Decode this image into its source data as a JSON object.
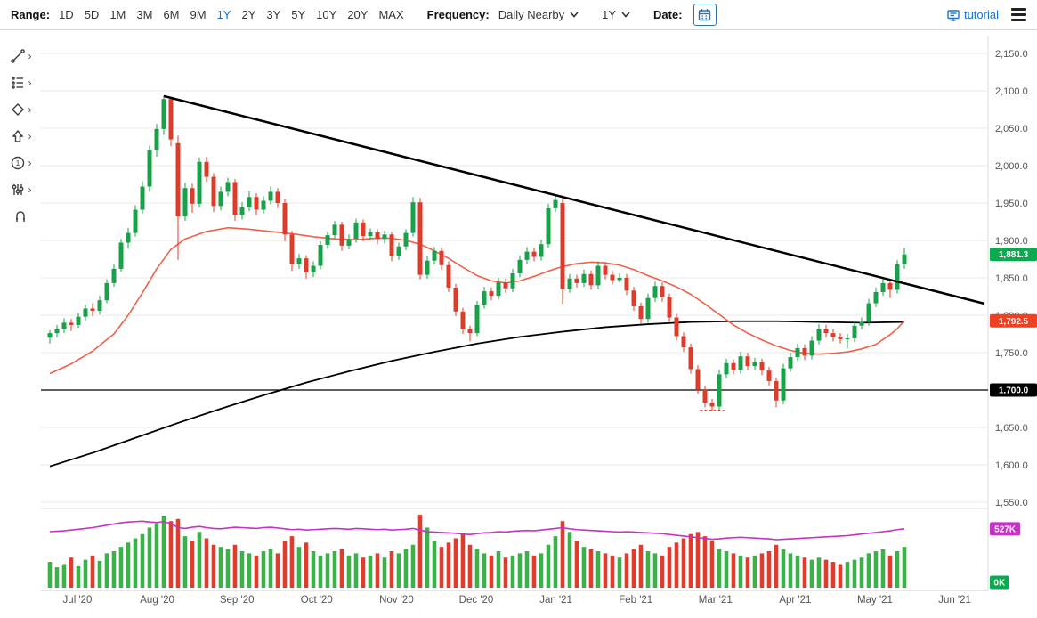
{
  "toolbar": {
    "range_label": "Range:",
    "ranges": [
      "1D",
      "5D",
      "1M",
      "3M",
      "6M",
      "9M",
      "1Y",
      "2Y",
      "3Y",
      "5Y",
      "10Y",
      "20Y",
      "MAX"
    ],
    "active_range": "1Y",
    "frequency_label": "Frequency:",
    "frequency_value": "Daily Nearby",
    "period_value": "1Y",
    "date_label": "Date:",
    "tutorial_label": "tutorial"
  },
  "ui_colors": {
    "accent_blue": "#1673d2",
    "calendar_border": "#2e76ad",
    "text_dark": "#222222"
  },
  "sidebar": {
    "tools": [
      "trendline-tool",
      "indicators-tool",
      "shapes-tool",
      "arrows-tool",
      "numbers-tool",
      "sliders-tool",
      "magnet-tool"
    ]
  },
  "chart_data": {
    "type": "candlestick",
    "frequency": "Daily Nearby",
    "x_labels": [
      "Jul '20",
      "Aug '20",
      "Sep '20",
      "Oct '20",
      "Nov '20",
      "Dec '20",
      "Jan '21",
      "Feb '21",
      "Mar '21",
      "Apr '21",
      "May '21",
      "Jun '21"
    ],
    "y_axis": {
      "min": 1550,
      "max": 2150,
      "step": 50,
      "tick_values": [
        2150,
        2100,
        2050,
        2000,
        1950,
        1900,
        1850,
        1800,
        1750,
        1700,
        1650,
        1600,
        1550
      ],
      "tick_labels": [
        "2,150.0",
        "2,100.0",
        "2,050.0",
        "2,000.0",
        "1,950.0",
        "1,900.0",
        "1,850.0",
        "1,800.0",
        "1,750.0",
        "1,700.0",
        "1,650.0",
        "1,600.0",
        "1,550.0"
      ]
    },
    "colors": {
      "up": "#18a04a",
      "down": "#dc3c2a",
      "volume_up": "#3cb049",
      "volume_down": "#e03c2e",
      "ma_short": "#f0604a",
      "ma_long": "#000000",
      "open_interest": "#c434c4",
      "grid": "#e8e8e8",
      "axis_text": "#555555"
    },
    "candles": [
      [
        1770,
        1780,
        1762,
        1776
      ],
      [
        1776,
        1787,
        1770,
        1781
      ],
      [
        1781,
        1796,
        1776,
        1790
      ],
      [
        1790,
        1795,
        1779,
        1787
      ],
      [
        1787,
        1803,
        1783,
        1798
      ],
      [
        1798,
        1814,
        1793,
        1809
      ],
      [
        1809,
        1816,
        1799,
        1806
      ],
      [
        1806,
        1826,
        1801,
        1820
      ],
      [
        1820,
        1848,
        1816,
        1843
      ],
      [
        1843,
        1868,
        1838,
        1862
      ],
      [
        1862,
        1902,
        1858,
        1897
      ],
      [
        1897,
        1917,
        1889,
        1910
      ],
      [
        1910,
        1947,
        1905,
        1941
      ],
      [
        1941,
        1979,
        1936,
        1972
      ],
      [
        1972,
        2027,
        1965,
        2021
      ],
      [
        2021,
        2056,
        2012,
        2049
      ],
      [
        2049,
        2093,
        2041,
        2089
      ],
      [
        2089,
        2091,
        2026,
        2035
      ],
      [
        2030,
        2040,
        1874,
        1932
      ],
      [
        1932,
        1977,
        1926,
        1970
      ],
      [
        1970,
        1976,
        1937,
        1949
      ],
      [
        1949,
        2011,
        1944,
        2005
      ],
      [
        2005,
        2012,
        1978,
        1985
      ],
      [
        1985,
        1990,
        1938,
        1946
      ],
      [
        1946,
        1972,
        1940,
        1965
      ],
      [
        1965,
        1984,
        1959,
        1978
      ],
      [
        1978,
        1982,
        1926,
        1934
      ],
      [
        1934,
        1951,
        1928,
        1944
      ],
      [
        1944,
        1966,
        1939,
        1958
      ],
      [
        1958,
        1963,
        1934,
        1941
      ],
      [
        1941,
        1959,
        1936,
        1953
      ],
      [
        1953,
        1972,
        1948,
        1965
      ],
      [
        1965,
        1970,
        1943,
        1950
      ],
      [
        1950,
        1955,
        1899,
        1908
      ],
      [
        1908,
        1913,
        1859,
        1868
      ],
      [
        1868,
        1882,
        1862,
        1876
      ],
      [
        1876,
        1880,
        1849,
        1857
      ],
      [
        1857,
        1872,
        1851,
        1866
      ],
      [
        1866,
        1899,
        1861,
        1894
      ],
      [
        1894,
        1912,
        1889,
        1907
      ],
      [
        1907,
        1926,
        1902,
        1921
      ],
      [
        1921,
        1925,
        1886,
        1893
      ],
      [
        1893,
        1908,
        1888,
        1902
      ],
      [
        1902,
        1929,
        1897,
        1924
      ],
      [
        1924,
        1928,
        1899,
        1906
      ],
      [
        1906,
        1916,
        1900,
        1911
      ],
      [
        1911,
        1915,
        1895,
        1902
      ],
      [
        1902,
        1913,
        1896,
        1908
      ],
      [
        1908,
        1912,
        1872,
        1879
      ],
      [
        1879,
        1897,
        1874,
        1892
      ],
      [
        1892,
        1915,
        1887,
        1910
      ],
      [
        1910,
        1958,
        1905,
        1951
      ],
      [
        1951,
        1957,
        1848,
        1854
      ],
      [
        1854,
        1879,
        1849,
        1873
      ],
      [
        1873,
        1891,
        1868,
        1886
      ],
      [
        1886,
        1890,
        1861,
        1867
      ],
      [
        1867,
        1872,
        1831,
        1837
      ],
      [
        1837,
        1842,
        1799,
        1805
      ],
      [
        1805,
        1810,
        1775,
        1781
      ],
      [
        1781,
        1786,
        1765,
        1776
      ],
      [
        1776,
        1819,
        1772,
        1814
      ],
      [
        1814,
        1838,
        1809,
        1832
      ],
      [
        1832,
        1837,
        1820,
        1826
      ],
      [
        1826,
        1850,
        1821,
        1844
      ],
      [
        1844,
        1849,
        1830,
        1836
      ],
      [
        1836,
        1862,
        1831,
        1856
      ],
      [
        1856,
        1880,
        1851,
        1874
      ],
      [
        1874,
        1891,
        1869,
        1885
      ],
      [
        1885,
        1890,
        1872,
        1878
      ],
      [
        1878,
        1901,
        1873,
        1895
      ],
      [
        1895,
        1949,
        1890,
        1943
      ],
      [
        1943,
        1960,
        1938,
        1954
      ],
      [
        1950,
        1958,
        1815,
        1835
      ],
      [
        1835,
        1855,
        1830,
        1849
      ],
      [
        1849,
        1854,
        1837,
        1843
      ],
      [
        1843,
        1861,
        1838,
        1855
      ],
      [
        1855,
        1860,
        1834,
        1840
      ],
      [
        1840,
        1872,
        1835,
        1866
      ],
      [
        1866,
        1871,
        1848,
        1854
      ],
      [
        1854,
        1859,
        1841,
        1847
      ],
      [
        1847,
        1856,
        1844,
        1850
      ],
      [
        1850,
        1855,
        1827,
        1833
      ],
      [
        1833,
        1838,
        1806,
        1812
      ],
      [
        1812,
        1817,
        1789,
        1795
      ],
      [
        1795,
        1829,
        1790,
        1823
      ],
      [
        1823,
        1845,
        1818,
        1839
      ],
      [
        1839,
        1844,
        1818,
        1824
      ],
      [
        1824,
        1829,
        1791,
        1797
      ],
      [
        1797,
        1802,
        1766,
        1772
      ],
      [
        1772,
        1777,
        1751,
        1757
      ],
      [
        1757,
        1762,
        1722,
        1728
      ],
      [
        1728,
        1733,
        1695,
        1701
      ],
      [
        1701,
        1706,
        1677,
        1683
      ],
      [
        1683,
        1688,
        1672,
        1678
      ],
      [
        1678,
        1727,
        1673,
        1721
      ],
      [
        1721,
        1742,
        1716,
        1736
      ],
      [
        1736,
        1741,
        1721,
        1727
      ],
      [
        1727,
        1751,
        1722,
        1745
      ],
      [
        1745,
        1750,
        1726,
        1732
      ],
      [
        1732,
        1743,
        1727,
        1737
      ],
      [
        1737,
        1742,
        1720,
        1726
      ],
      [
        1726,
        1731,
        1706,
        1712
      ],
      [
        1712,
        1717,
        1677,
        1686
      ],
      [
        1686,
        1735,
        1681,
        1729
      ],
      [
        1729,
        1750,
        1724,
        1744
      ],
      [
        1744,
        1762,
        1739,
        1756
      ],
      [
        1756,
        1761,
        1740,
        1746
      ],
      [
        1746,
        1772,
        1741,
        1766
      ],
      [
        1766,
        1788,
        1761,
        1782
      ],
      [
        1782,
        1787,
        1770,
        1776
      ],
      [
        1776,
        1781,
        1765,
        1771
      ],
      [
        1771,
        1776,
        1762,
        1768
      ],
      [
        1768,
        1775,
        1756,
        1769
      ],
      [
        1769,
        1792,
        1764,
        1786
      ],
      [
        1786,
        1797,
        1781,
        1791
      ],
      [
        1791,
        1822,
        1786,
        1816
      ],
      [
        1816,
        1837,
        1811,
        1831
      ],
      [
        1831,
        1849,
        1826,
        1843
      ],
      [
        1843,
        1848,
        1823,
        1834
      ],
      [
        1834,
        1874,
        1829,
        1868
      ],
      [
        1868,
        1890,
        1862,
        1881.3
      ]
    ],
    "overlays": {
      "trendline": {
        "i1": 16,
        "p1": 2093,
        "i2": 131.25,
        "p2": 1815.5,
        "color": "#000000"
      },
      "horizontal_line": {
        "price": 1700,
        "color": "#000000"
      },
      "low_marker": {
        "price": 1673,
        "i1": 91.3,
        "i2": 94.7
      },
      "ma_short": {
        "color": "#f0604a",
        "points": [
          [
            0,
            1722
          ],
          [
            3,
            1735
          ],
          [
            6,
            1752
          ],
          [
            9,
            1775
          ],
          [
            11,
            1800
          ],
          [
            13,
            1830
          ],
          [
            15,
            1862
          ],
          [
            17,
            1888
          ],
          [
            19,
            1902
          ],
          [
            22,
            1912
          ],
          [
            25,
            1917
          ],
          [
            28,
            1915
          ],
          [
            31,
            1912
          ],
          [
            34,
            1909
          ],
          [
            37,
            1905
          ],
          [
            40,
            1902
          ],
          [
            43,
            1901
          ],
          [
            46,
            1903
          ],
          [
            48,
            1903
          ],
          [
            50,
            1900
          ],
          [
            52,
            1895
          ],
          [
            54,
            1886
          ],
          [
            56,
            1876
          ],
          [
            58,
            1864
          ],
          [
            60,
            1853
          ],
          [
            62,
            1846
          ],
          [
            64,
            1843
          ],
          [
            66,
            1846
          ],
          [
            68,
            1852
          ],
          [
            70,
            1859
          ],
          [
            72,
            1865
          ],
          [
            74,
            1869
          ],
          [
            76,
            1871
          ],
          [
            78,
            1870
          ],
          [
            80,
            1867
          ],
          [
            82,
            1861
          ],
          [
            84,
            1853
          ],
          [
            86,
            1846
          ],
          [
            88,
            1838
          ],
          [
            90,
            1828
          ],
          [
            92,
            1815
          ],
          [
            94,
            1801
          ],
          [
            96,
            1787
          ],
          [
            98,
            1776
          ],
          [
            100,
            1767
          ],
          [
            102,
            1759
          ],
          [
            104,
            1753
          ],
          [
            106,
            1749
          ],
          [
            108,
            1748
          ],
          [
            110,
            1749
          ],
          [
            112,
            1751
          ],
          [
            114,
            1755
          ],
          [
            116,
            1761
          ],
          [
            118,
            1774
          ],
          [
            119,
            1782
          ],
          [
            120,
            1792.5
          ]
        ]
      },
      "ma_long": {
        "color": "#000000",
        "points": [
          [
            0,
            1598
          ],
          [
            6,
            1616
          ],
          [
            12,
            1636
          ],
          [
            18,
            1656
          ],
          [
            24,
            1675
          ],
          [
            30,
            1693
          ],
          [
            36,
            1710
          ],
          [
            42,
            1725
          ],
          [
            48,
            1739
          ],
          [
            54,
            1751
          ],
          [
            60,
            1762
          ],
          [
            66,
            1771
          ],
          [
            72,
            1778
          ],
          [
            78,
            1784
          ],
          [
            84,
            1788
          ],
          [
            90,
            1791
          ],
          [
            96,
            1792
          ],
          [
            102,
            1792
          ],
          [
            108,
            1791
          ],
          [
            114,
            1790
          ],
          [
            120,
            1791
          ]
        ]
      }
    },
    "badges": [
      {
        "id": "last-price",
        "label": "1,881.3",
        "value": 1881.3,
        "color": "#0ca94f",
        "pane": "main"
      },
      {
        "id": "ma-value",
        "label": "1,792.5",
        "value": 1792.5,
        "color": "#ee4023",
        "pane": "main"
      },
      {
        "id": "level-1700",
        "label": "1,700.0",
        "value": 1700,
        "color": "#000000",
        "pane": "main"
      },
      {
        "id": "open-interest",
        "label": "527K",
        "value": 527,
        "color": "#c434c4",
        "pane": "volume"
      },
      {
        "id": "session-volume",
        "label": "0K",
        "value": 0,
        "color": "#0ca94f",
        "pane": "volume"
      }
    ],
    "volume": {
      "values": [
        120,
        95,
        110,
        140,
        100,
        130,
        150,
        125,
        160,
        170,
        190,
        210,
        230,
        250,
        280,
        300,
        335,
        310,
        320,
        240,
        220,
        260,
        230,
        200,
        190,
        180,
        200,
        170,
        160,
        150,
        170,
        180,
        160,
        220,
        240,
        190,
        210,
        170,
        150,
        160,
        170,
        180,
        150,
        160,
        140,
        150,
        160,
        140,
        170,
        160,
        180,
        200,
        340,
        280,
        220,
        190,
        210,
        230,
        250,
        200,
        180,
        160,
        150,
        170,
        140,
        150,
        160,
        170,
        150,
        160,
        200,
        240,
        310,
        260,
        220,
        190,
        180,
        170,
        160,
        150,
        140,
        160,
        180,
        200,
        170,
        160,
        150,
        190,
        210,
        230,
        250,
        260,
        240,
        220,
        180,
        170,
        160,
        150,
        140,
        150,
        160,
        170,
        200,
        180,
        160,
        150,
        140,
        130,
        140,
        130,
        120,
        110,
        120,
        130,
        140,
        160,
        170,
        180,
        150,
        170,
        190
      ]
    },
    "open_interest": {
      "values": [
        520,
        521,
        522,
        524,
        526,
        528,
        530,
        533,
        536,
        539,
        542,
        544,
        545,
        546,
        544,
        543,
        545,
        540,
        530,
        528,
        531,
        533,
        530,
        528,
        527,
        529,
        531,
        530,
        529,
        528,
        530,
        531,
        529,
        527,
        525,
        526,
        524,
        525,
        526,
        527,
        528,
        527,
        526,
        528,
        527,
        526,
        525,
        526,
        524,
        525,
        526,
        528,
        524,
        520,
        519,
        518,
        517,
        516,
        514,
        513,
        515,
        517,
        518,
        520,
        519,
        521,
        522,
        523,
        522,
        524,
        526,
        528,
        530,
        527,
        525,
        524,
        523,
        522,
        521,
        520,
        519,
        520,
        519,
        518,
        517,
        516,
        515,
        513,
        511,
        509,
        507,
        505,
        503,
        501,
        502,
        504,
        505,
        506,
        505,
        504,
        503,
        502,
        500,
        501,
        502,
        503,
        504,
        505,
        506,
        507,
        508,
        509,
        510,
        512,
        514,
        516,
        518,
        520,
        522,
        525,
        527
      ]
    }
  }
}
